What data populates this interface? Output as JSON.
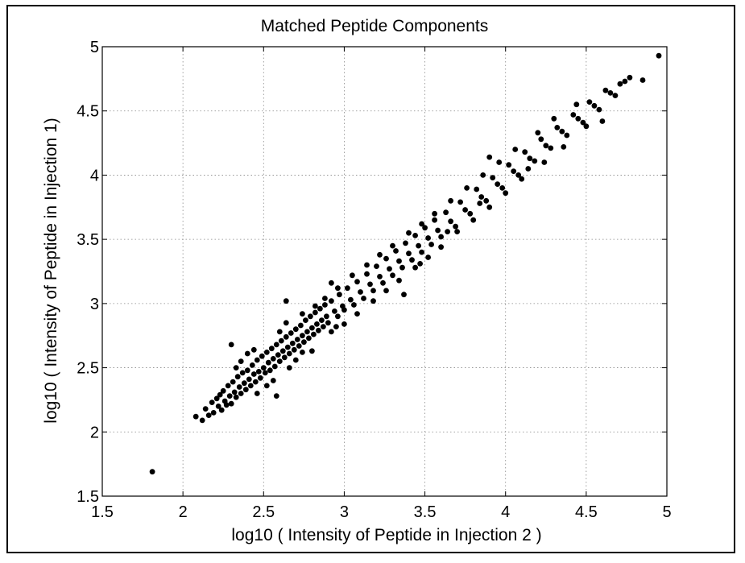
{
  "chart_data": {
    "type": "scatter",
    "title": "Matched Peptide Components",
    "xlabel": "log10 ( Intensity of Peptide in Injection 2 )",
    "ylabel": "log10 ( Intensity of Peptide in Injection 1)",
    "xlim": [
      1.5,
      5
    ],
    "ylim": [
      1.5,
      5
    ],
    "xticks": [
      "1.5",
      "2",
      "2.5",
      "3",
      "3.5",
      "4",
      "4.5",
      "5"
    ],
    "yticks": [
      "1.5",
      "2",
      "2.5",
      "3",
      "3.5",
      "4",
      "4.5",
      "5"
    ],
    "xtick_values": [
      1.5,
      2,
      2.5,
      3,
      3.5,
      4,
      4.5,
      5
    ],
    "ytick_values": [
      1.5,
      2,
      2.5,
      3,
      3.5,
      4,
      4.5,
      5
    ],
    "grid": true,
    "marker_color": "#000000",
    "series": [
      {
        "points": [
          [
            1.81,
            1.69
          ],
          [
            2.08,
            2.12
          ],
          [
            2.12,
            2.09
          ],
          [
            2.14,
            2.18
          ],
          [
            2.16,
            2.13
          ],
          [
            2.18,
            2.23
          ],
          [
            2.19,
            2.15
          ],
          [
            2.21,
            2.26
          ],
          [
            2.22,
            2.2
          ],
          [
            2.23,
            2.29
          ],
          [
            2.24,
            2.17
          ],
          [
            2.25,
            2.32
          ],
          [
            2.26,
            2.24
          ],
          [
            2.27,
            2.21
          ],
          [
            2.28,
            2.36
          ],
          [
            2.29,
            2.28
          ],
          [
            2.3,
            2.22
          ],
          [
            2.3,
            2.68
          ],
          [
            2.31,
            2.39
          ],
          [
            2.32,
            2.31
          ],
          [
            2.33,
            2.27
          ],
          [
            2.34,
            2.43
          ],
          [
            2.35,
            2.35
          ],
          [
            2.36,
            2.3
          ],
          [
            2.37,
            2.46
          ],
          [
            2.38,
            2.38
          ],
          [
            2.39,
            2.33
          ],
          [
            2.4,
            2.48
          ],
          [
            2.41,
            2.41
          ],
          [
            2.42,
            2.36
          ],
          [
            2.43,
            2.52
          ],
          [
            2.44,
            2.45
          ],
          [
            2.45,
            2.39
          ],
          [
            2.46,
            2.56
          ],
          [
            2.47,
            2.47
          ],
          [
            2.48,
            2.42
          ],
          [
            2.49,
            2.59
          ],
          [
            2.5,
            2.5
          ],
          [
            2.51,
            2.46
          ],
          [
            2.52,
            2.62
          ],
          [
            2.53,
            2.54
          ],
          [
            2.54,
            2.48
          ],
          [
            2.55,
            2.65
          ],
          [
            2.56,
            2.57
          ],
          [
            2.57,
            2.51
          ],
          [
            2.58,
            2.68
          ],
          [
            2.59,
            2.6
          ],
          [
            2.6,
            2.55
          ],
          [
            2.61,
            2.71
          ],
          [
            2.62,
            2.63
          ],
          [
            2.63,
            2.58
          ],
          [
            2.64,
            2.74
          ],
          [
            2.65,
            2.66
          ],
          [
            2.66,
            2.61
          ],
          [
            2.67,
            2.77
          ],
          [
            2.68,
            2.69
          ],
          [
            2.69,
            2.64
          ],
          [
            2.7,
            2.8
          ],
          [
            2.71,
            2.72
          ],
          [
            2.72,
            2.67
          ],
          [
            2.73,
            2.83
          ],
          [
            2.74,
            2.75
          ],
          [
            2.75,
            2.7
          ],
          [
            2.76,
            2.87
          ],
          [
            2.77,
            2.78
          ],
          [
            2.78,
            2.73
          ],
          [
            2.79,
            2.9
          ],
          [
            2.8,
            2.81
          ],
          [
            2.81,
            2.76
          ],
          [
            2.82,
            2.93
          ],
          [
            2.83,
            2.84
          ],
          [
            2.84,
            2.79
          ],
          [
            2.85,
            2.96
          ],
          [
            2.86,
            2.87
          ],
          [
            2.87,
            2.82
          ],
          [
            2.88,
            2.99
          ],
          [
            2.89,
            2.9
          ],
          [
            2.9,
            2.85
          ],
          [
            2.92,
            3.02
          ],
          [
            2.94,
            2.94
          ],
          [
            2.96,
            2.9
          ],
          [
            2.97,
            3.07
          ],
          [
            2.99,
            2.98
          ],
          [
            3.0,
            2.95
          ],
          [
            3.02,
            3.12
          ],
          [
            3.04,
            3.03
          ],
          [
            3.06,
            2.99
          ],
          [
            3.08,
            3.17
          ],
          [
            3.1,
            3.09
          ],
          [
            3.12,
            3.04
          ],
          [
            3.14,
            3.23
          ],
          [
            3.16,
            3.15
          ],
          [
            3.18,
            3.1
          ],
          [
            3.2,
            3.29
          ],
          [
            3.22,
            3.21
          ],
          [
            3.24,
            3.16
          ],
          [
            3.26,
            3.35
          ],
          [
            3.28,
            3.27
          ],
          [
            3.3,
            3.22
          ],
          [
            3.32,
            3.41
          ],
          [
            3.34,
            3.33
          ],
          [
            3.36,
            3.28
          ],
          [
            3.38,
            3.47
          ],
          [
            3.4,
            3.39
          ],
          [
            3.42,
            3.34
          ],
          [
            3.44,
            3.53
          ],
          [
            3.46,
            3.45
          ],
          [
            3.48,
            3.4
          ],
          [
            3.5,
            3.59
          ],
          [
            3.52,
            3.51
          ],
          [
            3.54,
            3.46
          ],
          [
            3.56,
            3.65
          ],
          [
            3.58,
            3.57
          ],
          [
            3.6,
            3.52
          ],
          [
            3.63,
            3.71
          ],
          [
            3.66,
            3.64
          ],
          [
            3.69,
            3.6
          ],
          [
            3.72,
            3.79
          ],
          [
            3.75,
            3.73
          ],
          [
            3.78,
            3.7
          ],
          [
            3.82,
            3.89
          ],
          [
            3.85,
            3.83
          ],
          [
            3.88,
            3.8
          ],
          [
            3.92,
            3.98
          ],
          [
            3.95,
            3.93
          ],
          [
            3.98,
            3.9
          ],
          [
            4.02,
            4.08
          ],
          [
            4.05,
            4.03
          ],
          [
            4.08,
            4.0
          ],
          [
            4.12,
            4.18
          ],
          [
            4.15,
            4.13
          ],
          [
            4.18,
            4.11
          ],
          [
            4.22,
            4.28
          ],
          [
            4.25,
            4.23
          ],
          [
            4.28,
            4.21
          ],
          [
            4.32,
            4.37
          ],
          [
            4.35,
            4.34
          ],
          [
            4.38,
            4.31
          ],
          [
            4.42,
            4.47
          ],
          [
            4.45,
            4.44
          ],
          [
            4.48,
            4.41
          ],
          [
            4.52,
            4.57
          ],
          [
            4.55,
            4.54
          ],
          [
            4.58,
            4.51
          ],
          [
            4.62,
            4.66
          ],
          [
            4.65,
            4.64
          ],
          [
            4.68,
            4.62
          ],
          [
            4.71,
            4.71
          ],
          [
            4.74,
            4.73
          ],
          [
            4.77,
            4.76
          ],
          [
            4.85,
            4.74
          ],
          [
            4.95,
            4.93
          ],
          [
            2.33,
            2.5
          ],
          [
            2.36,
            2.55
          ],
          [
            2.4,
            2.61
          ],
          [
            2.44,
            2.64
          ],
          [
            2.46,
            2.3
          ],
          [
            2.52,
            2.36
          ],
          [
            2.56,
            2.4
          ],
          [
            2.6,
            2.78
          ],
          [
            2.64,
            2.85
          ],
          [
            2.66,
            2.5
          ],
          [
            2.7,
            2.56
          ],
          [
            2.74,
            2.92
          ],
          [
            2.8,
            2.63
          ],
          [
            2.82,
            2.98
          ],
          [
            2.88,
            3.04
          ],
          [
            2.92,
            2.78
          ],
          [
            2.96,
            3.12
          ],
          [
            3.0,
            2.84
          ],
          [
            3.05,
            3.22
          ],
          [
            3.08,
            2.92
          ],
          [
            3.14,
            3.3
          ],
          [
            3.18,
            3.02
          ],
          [
            3.22,
            3.38
          ],
          [
            3.26,
            3.1
          ],
          [
            3.3,
            3.45
          ],
          [
            3.34,
            3.18
          ],
          [
            3.4,
            3.55
          ],
          [
            3.44,
            3.28
          ],
          [
            3.48,
            3.62
          ],
          [
            3.52,
            3.36
          ],
          [
            3.56,
            3.7
          ],
          [
            3.6,
            3.44
          ],
          [
            3.66,
            3.8
          ],
          [
            3.7,
            3.56
          ],
          [
            3.76,
            3.9
          ],
          [
            3.8,
            3.65
          ],
          [
            3.86,
            4.0
          ],
          [
            3.9,
            3.75
          ],
          [
            3.96,
            4.1
          ],
          [
            4.0,
            3.86
          ],
          [
            4.06,
            4.2
          ],
          [
            4.1,
            3.97
          ],
          [
            4.2,
            4.33
          ],
          [
            4.24,
            4.1
          ],
          [
            4.3,
            4.44
          ],
          [
            4.36,
            4.22
          ],
          [
            4.44,
            4.55
          ],
          [
            4.5,
            4.38
          ],
          [
            2.64,
            3.02
          ],
          [
            2.92,
            3.16
          ],
          [
            2.58,
            2.28
          ],
          [
            3.37,
            3.07
          ],
          [
            3.9,
            4.14
          ],
          [
            4.6,
            4.42
          ],
          [
            3.47,
            3.31
          ],
          [
            2.74,
            2.62
          ],
          [
            3.64,
            3.56
          ],
          [
            3.84,
            3.78
          ],
          [
            4.14,
            4.05
          ],
          [
            2.95,
            2.82
          ]
        ]
      }
    ]
  }
}
